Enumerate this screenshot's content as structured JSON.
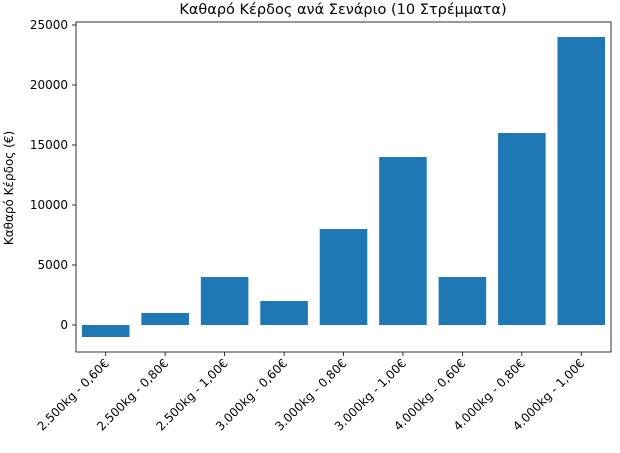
{
  "chart_data": {
    "type": "bar",
    "title": "Καθαρό Κέρδος ανά Σενάριο (10 Στρέμματα)",
    "y_label": "Καθαρό Κέρδος (€)",
    "categories": [
      "2.500kg - 0,60€",
      "2.500kg - 0,80€",
      "2.500kg - 1,00€",
      "3.000kg - 0,60€",
      "3.000kg - 0,80€",
      "3.000kg - 1,00€",
      "4.000kg - 0,60€",
      "4.000kg - 0,80€",
      "4.000kg - 1,00€"
    ],
    "values": [
      -1000,
      1000,
      4000,
      2000,
      8000,
      14000,
      4000,
      16000,
      24000
    ],
    "color": "#1f77b4",
    "ylim": [
      -2250,
      25250
    ],
    "yticks": [
      0,
      5000,
      10000,
      15000,
      20000,
      25000
    ],
    "grid": false
  }
}
